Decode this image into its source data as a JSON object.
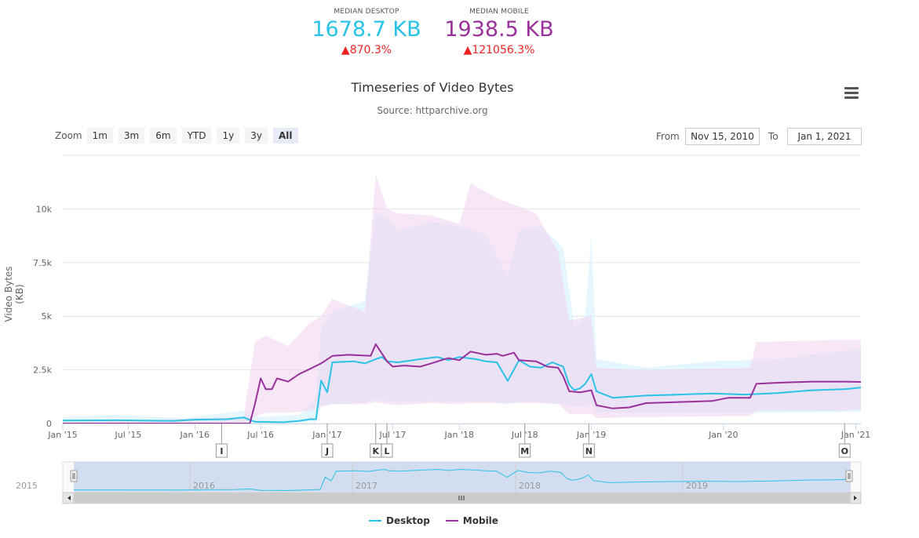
{
  "kpis": {
    "desktop": {
      "label": "MEDIAN DESKTOP",
      "value": "1678.7 KB",
      "change": "▲870.3%"
    },
    "mobile": {
      "label": "MEDIAN MOBILE",
      "value": "1938.5 KB",
      "change": "▲121056.3%"
    }
  },
  "menu_icon": "hamburger-menu-icon",
  "zoom": {
    "label": "Zoom",
    "buttons": [
      "1m",
      "3m",
      "6m",
      "YTD",
      "1y",
      "3y",
      "All"
    ],
    "active": "All"
  },
  "range": {
    "from_label": "From",
    "from_value": "Nov 15, 2010",
    "to_label": "To",
    "to_value": "Jan 1, 2021"
  },
  "colors": {
    "desktop": "#2bc2e8",
    "mobile": "#9a3099",
    "desktop_band": "#cfeffa",
    "mobile_band": "#f1d3ee",
    "navigator_fill": "#c9d6ee"
  },
  "chart_data": {
    "type": "line",
    "title": "Timeseries of Video Bytes",
    "subtitle": "Source: httparchive.org",
    "ylabel": "Video Bytes (KB)",
    "ylim": [
      0,
      12500
    ],
    "yticks": [
      0,
      2500,
      5000,
      7500,
      10000
    ],
    "ytick_labels": [
      "0",
      "2.5k",
      "5k",
      "7.5k",
      "10k"
    ],
    "xlim": [
      "2015-01-01",
      "2021-01-15"
    ],
    "xticks": [
      {
        "date": "2015-01-01",
        "label": "Jan '15"
      },
      {
        "date": "2015-07-01",
        "label": "Jul '15"
      },
      {
        "date": "2016-01-01",
        "label": "Jan '16"
      },
      {
        "date": "2016-07-01",
        "label": "Jul '16"
      },
      {
        "date": "2017-01-01",
        "label": "Jan '17"
      },
      {
        "date": "2017-07-01",
        "label": "Jul '17"
      },
      {
        "date": "2018-01-01",
        "label": "Jan '18"
      },
      {
        "date": "2018-07-01",
        "label": "Jul '18"
      },
      {
        "date": "2019-01-01",
        "label": "Jan '19"
      },
      {
        "date": "2020-01-01",
        "label": "Jan '20"
      },
      {
        "date": "2021-01-01",
        "label": "Jan '21"
      }
    ],
    "series": [
      {
        "name": "Desktop",
        "points": [
          [
            "2015-01-01",
            140
          ],
          [
            "2015-06-01",
            150
          ],
          [
            "2015-11-01",
            120
          ],
          [
            "2016-01-01",
            180
          ],
          [
            "2016-04-01",
            200
          ],
          [
            "2016-05-15",
            280
          ],
          [
            "2016-06-15",
            80
          ],
          [
            "2016-09-01",
            60
          ],
          [
            "2016-10-15",
            120
          ],
          [
            "2016-11-15",
            200
          ],
          [
            "2016-12-01",
            200
          ],
          [
            "2016-12-15",
            2000
          ],
          [
            "2017-01-01",
            1450
          ],
          [
            "2017-01-15",
            2850
          ],
          [
            "2017-03-15",
            2900
          ],
          [
            "2017-04-15",
            2800
          ],
          [
            "2017-05-15",
            3000
          ],
          [
            "2017-06-01",
            3100
          ],
          [
            "2017-06-15",
            2900
          ],
          [
            "2017-07-15",
            2850
          ],
          [
            "2017-09-15",
            3000
          ],
          [
            "2017-11-01",
            3100
          ],
          [
            "2017-12-01",
            2950
          ],
          [
            "2018-01-01",
            3100
          ],
          [
            "2018-02-15",
            3000
          ],
          [
            "2018-03-15",
            2900
          ],
          [
            "2018-04-15",
            2850
          ],
          [
            "2018-05-15",
            1980
          ],
          [
            "2018-06-15",
            2950
          ],
          [
            "2018-07-15",
            2650
          ],
          [
            "2018-08-15",
            2600
          ],
          [
            "2018-09-15",
            2850
          ],
          [
            "2018-10-15",
            2650
          ],
          [
            "2018-11-01",
            1800
          ],
          [
            "2018-11-15",
            1550
          ],
          [
            "2018-12-01",
            1650
          ],
          [
            "2018-12-15",
            1850
          ],
          [
            "2019-01-01",
            2300
          ],
          [
            "2019-01-15",
            1500
          ],
          [
            "2019-03-01",
            1200
          ],
          [
            "2019-06-01",
            1300
          ],
          [
            "2019-09-01",
            1350
          ],
          [
            "2019-12-01",
            1400
          ],
          [
            "2020-03-01",
            1350
          ],
          [
            "2020-06-01",
            1420
          ],
          [
            "2020-09-01",
            1550
          ],
          [
            "2020-12-01",
            1600
          ],
          [
            "2021-01-15",
            1678.7
          ]
        ]
      },
      {
        "name": "Mobile",
        "points": [
          [
            "2015-01-01",
            0
          ],
          [
            "2016-06-01",
            0
          ],
          [
            "2016-06-15",
            900
          ],
          [
            "2016-07-01",
            2100
          ],
          [
            "2016-07-15",
            1600
          ],
          [
            "2016-08-01",
            1600
          ],
          [
            "2016-08-15",
            2100
          ],
          [
            "2016-09-15",
            1950
          ],
          [
            "2016-10-15",
            2300
          ],
          [
            "2016-11-15",
            2550
          ],
          [
            "2016-12-15",
            2800
          ],
          [
            "2017-01-15",
            3150
          ],
          [
            "2017-03-01",
            3200
          ],
          [
            "2017-05-01",
            3150
          ],
          [
            "2017-05-15",
            3700
          ],
          [
            "2017-06-15",
            2900
          ],
          [
            "2017-07-01",
            2650
          ],
          [
            "2017-08-01",
            2700
          ],
          [
            "2017-09-15",
            2650
          ],
          [
            "2017-10-15",
            2800
          ],
          [
            "2017-12-01",
            3050
          ],
          [
            "2018-01-01",
            2950
          ],
          [
            "2018-02-01",
            3350
          ],
          [
            "2018-03-15",
            3200
          ],
          [
            "2018-04-15",
            3250
          ],
          [
            "2018-05-01",
            3150
          ],
          [
            "2018-06-01",
            3300
          ],
          [
            "2018-06-15",
            2950
          ],
          [
            "2018-08-01",
            2900
          ],
          [
            "2018-09-01",
            2650
          ],
          [
            "2018-10-01",
            2600
          ],
          [
            "2018-10-15",
            2200
          ],
          [
            "2018-11-01",
            1500
          ],
          [
            "2018-12-01",
            1450
          ],
          [
            "2019-01-01",
            1550
          ],
          [
            "2019-01-15",
            850
          ],
          [
            "2019-03-01",
            700
          ],
          [
            "2019-04-15",
            750
          ],
          [
            "2019-06-01",
            950
          ],
          [
            "2019-09-01",
            1000
          ],
          [
            "2019-12-01",
            1050
          ],
          [
            "2020-01-15",
            1200
          ],
          [
            "2020-03-15",
            1200
          ],
          [
            "2020-04-01",
            1850
          ],
          [
            "2020-06-01",
            1900
          ],
          [
            "2020-09-01",
            1950
          ],
          [
            "2020-12-01",
            1950
          ],
          [
            "2021-01-15",
            1938.5
          ]
        ]
      }
    ],
    "bands": [
      {
        "series": "Desktop",
        "points": [
          [
            "2015-01-01",
            50,
            300
          ],
          [
            "2015-06-01",
            50,
            400
          ],
          [
            "2015-12-01",
            50,
            250
          ],
          [
            "2016-05-15",
            80,
            600
          ],
          [
            "2016-06-15",
            20,
            300
          ],
          [
            "2016-10-15",
            40,
            400
          ],
          [
            "2016-12-01",
            80,
            1200
          ],
          [
            "2016-12-15",
            800,
            4500
          ],
          [
            "2017-01-15",
            900,
            5200
          ],
          [
            "2017-04-15",
            950,
            5700
          ],
          [
            "2017-05-15",
            1100,
            9800
          ],
          [
            "2017-06-15",
            1050,
            9600
          ],
          [
            "2017-07-15",
            1000,
            9000
          ],
          [
            "2017-10-15",
            1050,
            9400
          ],
          [
            "2018-01-01",
            1000,
            9200
          ],
          [
            "2018-03-15",
            1050,
            8800
          ],
          [
            "2018-05-15",
            900,
            6800
          ],
          [
            "2018-06-15",
            1000,
            9000
          ],
          [
            "2018-08-15",
            1000,
            9200
          ],
          [
            "2018-10-15",
            900,
            8200
          ],
          [
            "2018-11-15",
            800,
            4500
          ],
          [
            "2018-12-15",
            800,
            5000
          ],
          [
            "2019-01-01",
            900,
            8800
          ],
          [
            "2019-01-15",
            500,
            3000
          ],
          [
            "2019-06-01",
            500,
            2600
          ],
          [
            "2019-12-01",
            500,
            2900
          ],
          [
            "2020-06-01",
            500,
            3000
          ],
          [
            "2021-01-15",
            550,
            3500
          ]
        ]
      },
      {
        "series": "Mobile",
        "points": [
          [
            "2015-01-01",
            0,
            50
          ],
          [
            "2016-05-15",
            0,
            300
          ],
          [
            "2016-06-15",
            300,
            3800
          ],
          [
            "2016-07-15",
            500,
            4100
          ],
          [
            "2016-09-15",
            500,
            3600
          ],
          [
            "2016-11-15",
            600,
            4700
          ],
          [
            "2016-12-15",
            800,
            5000
          ],
          [
            "2017-01-15",
            900,
            5800
          ],
          [
            "2017-04-15",
            900,
            5200
          ],
          [
            "2017-05-15",
            1000,
            11600
          ],
          [
            "2017-06-15",
            900,
            10000
          ],
          [
            "2017-07-15",
            850,
            9800
          ],
          [
            "2017-10-15",
            950,
            9700
          ],
          [
            "2018-01-01",
            900,
            9300
          ],
          [
            "2018-02-01",
            950,
            11200
          ],
          [
            "2018-04-15",
            950,
            10500
          ],
          [
            "2018-06-01",
            950,
            10200
          ],
          [
            "2018-08-01",
            950,
            9800
          ],
          [
            "2018-10-01",
            900,
            8000
          ],
          [
            "2018-11-01",
            450,
            4800
          ],
          [
            "2018-12-01",
            450,
            4900
          ],
          [
            "2019-01-01",
            450,
            5000
          ],
          [
            "2019-01-15",
            250,
            2600
          ],
          [
            "2019-06-01",
            300,
            2500
          ],
          [
            "2020-03-15",
            350,
            2600
          ],
          [
            "2020-04-01",
            600,
            3800
          ],
          [
            "2020-12-01",
            600,
            3900
          ],
          [
            "2021-01-15",
            650,
            3900
          ]
        ]
      }
    ],
    "flags": [
      {
        "label": "I",
        "date": "2016-03-15"
      },
      {
        "label": "J",
        "date": "2017-01-01"
      },
      {
        "label": "K",
        "date": "2017-05-15"
      },
      {
        "label": "L",
        "date": "2017-06-15"
      },
      {
        "label": "M",
        "date": "2018-07-01"
      },
      {
        "label": "N",
        "date": "2018-12-25"
      },
      {
        "label": "O",
        "date": "2020-12-01"
      }
    ],
    "navigator": {
      "year_labels": [
        "2015",
        "2016",
        "2017",
        "2018",
        "2019"
      ],
      "scroll_icon": "grip-icon",
      "handle_icon": "grip-icon",
      "left_arrow": "chevron-left-icon",
      "right_arrow": "chevron-right-icon"
    }
  },
  "legend": [
    "Desktop",
    "Mobile"
  ]
}
